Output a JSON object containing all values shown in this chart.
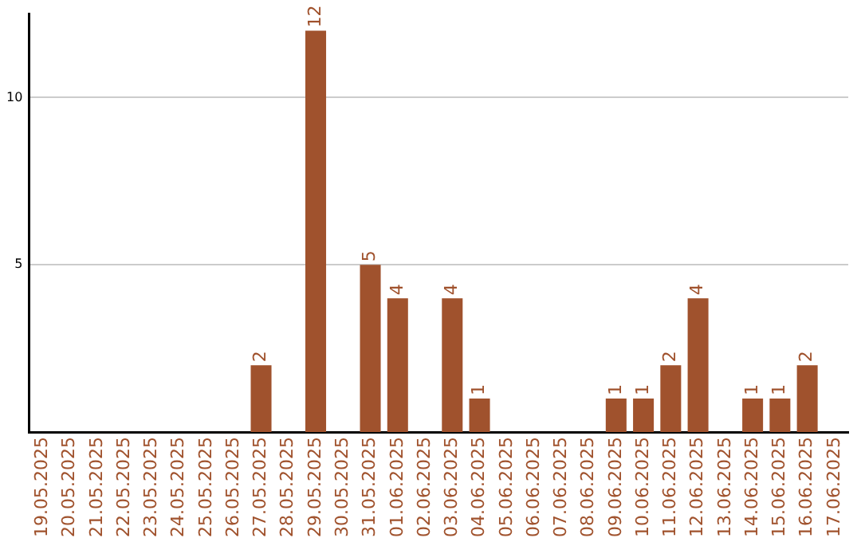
{
  "chart_data": {
    "type": "bar",
    "categories": [
      "19.05.2025",
      "20.05.2025",
      "21.05.2025",
      "22.05.2025",
      "23.05.2025",
      "24.05.2025",
      "25.05.2025",
      "26.05.2025",
      "27.05.2025",
      "28.05.2025",
      "29.05.2025",
      "30.05.2025",
      "31.05.2025",
      "01.06.2025",
      "02.06.2025",
      "03.06.2025",
      "04.06.2025",
      "05.06.2025",
      "06.06.2025",
      "07.06.2025",
      "08.06.2025",
      "09.06.2025",
      "10.06.2025",
      "11.06.2025",
      "12.06.2025",
      "13.06.2025",
      "14.06.2025",
      "15.06.2025",
      "16.06.2025",
      "17.06.2025"
    ],
    "values": [
      0,
      0,
      0,
      0,
      0,
      0,
      0,
      0,
      2,
      0,
      12,
      0,
      5,
      4,
      0,
      4,
      1,
      0,
      0,
      0,
      0,
      1,
      1,
      2,
      4,
      0,
      1,
      1,
      2,
      0
    ],
    "value_labels": [
      null,
      null,
      null,
      null,
      null,
      null,
      null,
      null,
      "2",
      null,
      "12",
      null,
      "5",
      "4",
      null,
      "4",
      "1",
      null,
      null,
      null,
      null,
      "1",
      "1",
      "2",
      "4",
      null,
      "1",
      "1",
      "2",
      null
    ],
    "color": "#a0522d",
    "ylim": [
      0,
      12.5
    ],
    "yticks": [
      5,
      10
    ],
    "grid": "y",
    "legend": false
  }
}
